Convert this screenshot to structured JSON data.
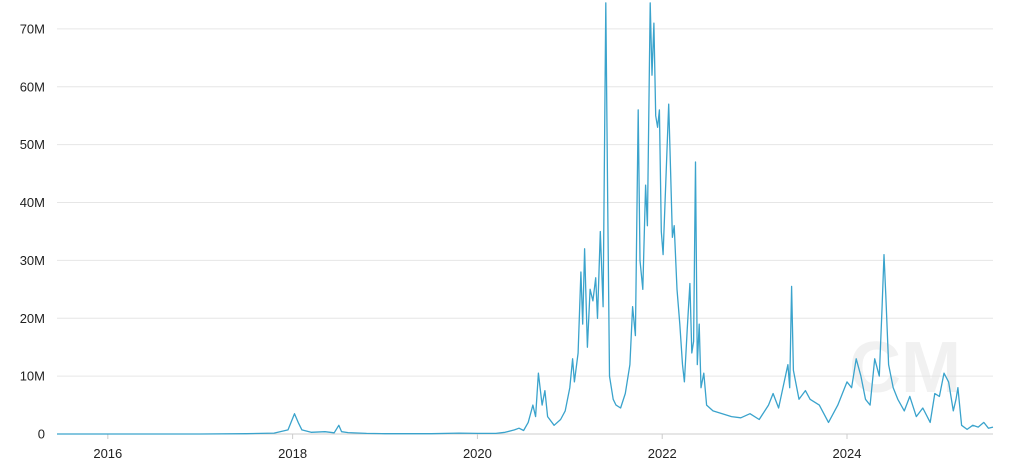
{
  "chart_data": {
    "type": "line",
    "grid": true,
    "legend": "none",
    "colors": {
      "line": "#3aa3cc",
      "grid": "#e6e6e6",
      "text": "#222222"
    },
    "ylim": [
      0,
      75000000
    ],
    "xlim": [
      2015.45,
      2025.58
    ],
    "y_ticks": [
      {
        "value": 0,
        "label": "0"
      },
      {
        "value": 10000000,
        "label": "10M"
      },
      {
        "value": 20000000,
        "label": "20M"
      },
      {
        "value": 30000000,
        "label": "30M"
      },
      {
        "value": 40000000,
        "label": "40M"
      },
      {
        "value": 50000000,
        "label": "50M"
      },
      {
        "value": 60000000,
        "label": "60M"
      },
      {
        "value": 70000000,
        "label": "70M"
      }
    ],
    "x_ticks": [
      {
        "value": 2016,
        "label": "2016"
      },
      {
        "value": 2018,
        "label": "2018"
      },
      {
        "value": 2020,
        "label": "2020"
      },
      {
        "value": 2022,
        "label": "2022"
      },
      {
        "value": 2024,
        "label": "2024"
      }
    ],
    "watermark": "CM",
    "series": [
      {
        "points": [
          [
            2015.45,
            0
          ],
          [
            2016.0,
            0
          ],
          [
            2016.5,
            0
          ],
          [
            2017.0,
            0
          ],
          [
            2017.5,
            50000
          ],
          [
            2017.8,
            150000
          ],
          [
            2017.95,
            700000
          ],
          [
            2018.02,
            3500000
          ],
          [
            2018.06,
            2000000
          ],
          [
            2018.1,
            700000
          ],
          [
            2018.2,
            300000
          ],
          [
            2018.35,
            400000
          ],
          [
            2018.45,
            200000
          ],
          [
            2018.5,
            1500000
          ],
          [
            2018.53,
            400000
          ],
          [
            2018.6,
            250000
          ],
          [
            2018.8,
            100000
          ],
          [
            2019.0,
            50000
          ],
          [
            2019.5,
            50000
          ],
          [
            2019.8,
            150000
          ],
          [
            2020.0,
            100000
          ],
          [
            2020.2,
            100000
          ],
          [
            2020.3,
            300000
          ],
          [
            2020.4,
            700000
          ],
          [
            2020.45,
            1000000
          ],
          [
            2020.5,
            600000
          ],
          [
            2020.55,
            2000000
          ],
          [
            2020.6,
            5000000
          ],
          [
            2020.63,
            3000000
          ],
          [
            2020.66,
            10500000
          ],
          [
            2020.7,
            5000000
          ],
          [
            2020.73,
            7500000
          ],
          [
            2020.76,
            3000000
          ],
          [
            2020.83,
            1500000
          ],
          [
            2020.9,
            2500000
          ],
          [
            2020.95,
            4000000
          ],
          [
            2021.0,
            8000000
          ],
          [
            2021.03,
            13000000
          ],
          [
            2021.05,
            9000000
          ],
          [
            2021.09,
            14000000
          ],
          [
            2021.12,
            28000000
          ],
          [
            2021.14,
            19000000
          ],
          [
            2021.16,
            32000000
          ],
          [
            2021.19,
            15000000
          ],
          [
            2021.22,
            25000000
          ],
          [
            2021.25,
            23000000
          ],
          [
            2021.28,
            27000000
          ],
          [
            2021.3,
            20000000
          ],
          [
            2021.33,
            35000000
          ],
          [
            2021.36,
            22000000
          ],
          [
            2021.39,
            74500000
          ],
          [
            2021.41,
            40000000
          ],
          [
            2021.43,
            10000000
          ],
          [
            2021.47,
            6000000
          ],
          [
            2021.5,
            5000000
          ],
          [
            2021.55,
            4500000
          ],
          [
            2021.6,
            7000000
          ],
          [
            2021.65,
            12000000
          ],
          [
            2021.68,
            22000000
          ],
          [
            2021.71,
            17000000
          ],
          [
            2021.74,
            56000000
          ],
          [
            2021.76,
            30000000
          ],
          [
            2021.79,
            25000000
          ],
          [
            2021.82,
            43000000
          ],
          [
            2021.84,
            36000000
          ],
          [
            2021.87,
            74500000
          ],
          [
            2021.89,
            62000000
          ],
          [
            2021.91,
            71000000
          ],
          [
            2021.93,
            55000000
          ],
          [
            2021.95,
            53000000
          ],
          [
            2021.97,
            56000000
          ],
          [
            2021.99,
            35000000
          ],
          [
            2022.01,
            31000000
          ],
          [
            2022.04,
            44000000
          ],
          [
            2022.07,
            57000000
          ],
          [
            2022.09,
            46000000
          ],
          [
            2022.11,
            34000000
          ],
          [
            2022.13,
            36000000
          ],
          [
            2022.16,
            25000000
          ],
          [
            2022.19,
            19000000
          ],
          [
            2022.22,
            12000000
          ],
          [
            2022.24,
            9000000
          ],
          [
            2022.27,
            18000000
          ],
          [
            2022.3,
            26000000
          ],
          [
            2022.32,
            14000000
          ],
          [
            2022.34,
            16000000
          ],
          [
            2022.36,
            47000000
          ],
          [
            2022.38,
            12000000
          ],
          [
            2022.4,
            19000000
          ],
          [
            2022.42,
            8000000
          ],
          [
            2022.45,
            10500000
          ],
          [
            2022.48,
            5000000
          ],
          [
            2022.55,
            4000000
          ],
          [
            2022.65,
            3500000
          ],
          [
            2022.75,
            3000000
          ],
          [
            2022.85,
            2800000
          ],
          [
            2022.95,
            3500000
          ],
          [
            2023.05,
            2500000
          ],
          [
            2023.15,
            5000000
          ],
          [
            2023.2,
            7000000
          ],
          [
            2023.26,
            4500000
          ],
          [
            2023.32,
            9000000
          ],
          [
            2023.36,
            12000000
          ],
          [
            2023.38,
            8000000
          ],
          [
            2023.4,
            25500000
          ],
          [
            2023.42,
            11000000
          ],
          [
            2023.48,
            6000000
          ],
          [
            2023.55,
            7500000
          ],
          [
            2023.6,
            6000000
          ],
          [
            2023.7,
            5000000
          ],
          [
            2023.8,
            2000000
          ],
          [
            2023.9,
            5000000
          ],
          [
            2024.0,
            9000000
          ],
          [
            2024.05,
            8000000
          ],
          [
            2024.1,
            13000000
          ],
          [
            2024.15,
            10000000
          ],
          [
            2024.2,
            6000000
          ],
          [
            2024.25,
            5000000
          ],
          [
            2024.3,
            13000000
          ],
          [
            2024.35,
            10000000
          ],
          [
            2024.38,
            22000000
          ],
          [
            2024.4,
            31000000
          ],
          [
            2024.42,
            24000000
          ],
          [
            2024.45,
            12000000
          ],
          [
            2024.5,
            8000000
          ],
          [
            2024.55,
            6000000
          ],
          [
            2024.62,
            4000000
          ],
          [
            2024.68,
            6500000
          ],
          [
            2024.75,
            3000000
          ],
          [
            2024.82,
            4500000
          ],
          [
            2024.9,
            2000000
          ],
          [
            2024.95,
            7000000
          ],
          [
            2025.0,
            6500000
          ],
          [
            2025.05,
            10500000
          ],
          [
            2025.1,
            9000000
          ],
          [
            2025.15,
            4000000
          ],
          [
            2025.18,
            6000000
          ],
          [
            2025.2,
            8000000
          ],
          [
            2025.24,
            1500000
          ],
          [
            2025.3,
            800000
          ],
          [
            2025.36,
            1500000
          ],
          [
            2025.42,
            1200000
          ],
          [
            2025.48,
            2000000
          ],
          [
            2025.53,
            1000000
          ],
          [
            2025.58,
            1200000
          ]
        ]
      }
    ]
  }
}
